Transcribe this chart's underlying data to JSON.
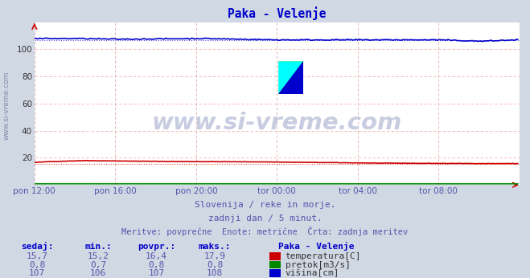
{
  "title": "Paka - Velenje",
  "title_color": "#0000cc",
  "bg_color": "#d0d8e4",
  "plot_bg_color": "#ffffff",
  "grid_color": "#ffaaaa",
  "grid_color_v": "#ddaaaa",
  "watermark_text": "www.si-vreme.com",
  "watermark_color": "#c8cce0",
  "left_label": "www.si-vreme.com",
  "xlabel_color": "#5555aa",
  "n_points": 288,
  "xlim": [
    0,
    288
  ],
  "ylim": [
    0,
    120
  ],
  "yticks": [
    0,
    20,
    40,
    60,
    80,
    100
  ],
  "xtick_labels": [
    "pon 12:00",
    "pon 16:00",
    "pon 20:00",
    "tor 00:00",
    "tor 04:00",
    "tor 08:00"
  ],
  "xtick_positions": [
    0,
    48,
    96,
    144,
    192,
    240
  ],
  "temp_value": 16.4,
  "temp_min": 15.2,
  "temp_max": 17.9,
  "temp_sedaj": 15.7,
  "flow_value": 0.8,
  "flow_min": 0.7,
  "flow_max": 0.8,
  "flow_sedaj": 0.8,
  "height_value": 107,
  "height_min": 106,
  "height_max": 108,
  "height_sedaj": 107,
  "temp_color": "#cc0000",
  "flow_color": "#008800",
  "height_color": "#0000cc",
  "subtitle1": "Slovenija / reke in morje.",
  "subtitle2": "zadnji dan / 5 minut.",
  "subtitle3": "Meritve: povprečne  Enote: metrične  Črta: zadnja meritev",
  "table_headers": [
    "sedaj:",
    "min.:",
    "povpr.:",
    "maks.:"
  ],
  "table_header_station": "Paka - Velenje",
  "legend": [
    "temperatura[C]",
    "pretok[m3/s]",
    "višina[cm]"
  ],
  "logo_yellow": "#ffff00",
  "logo_cyan": "#00ffff",
  "logo_blue": "#0000cc"
}
